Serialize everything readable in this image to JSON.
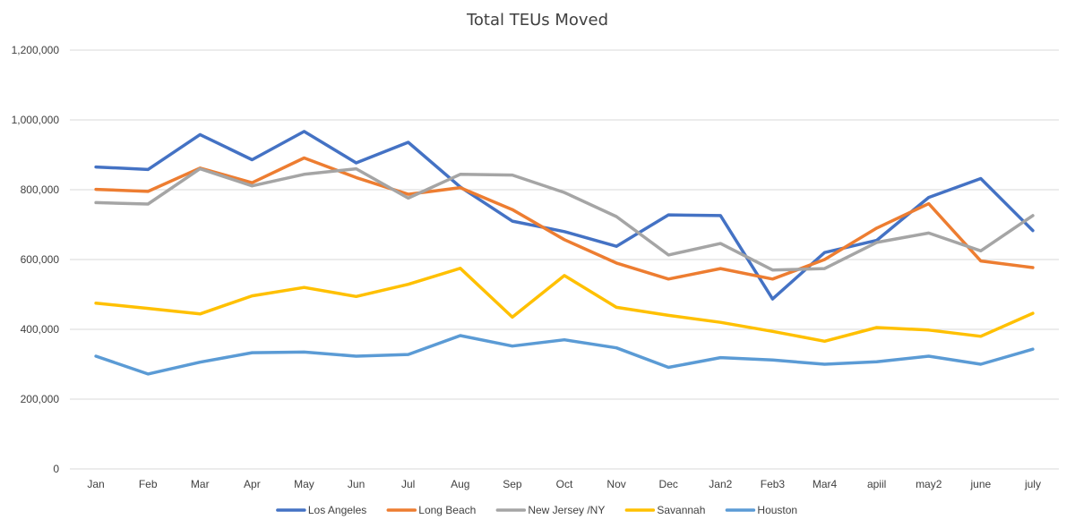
{
  "chart_data": {
    "type": "line",
    "title": "Total TEUs Moved",
    "xlabel": "",
    "ylabel": "",
    "ylim": [
      0,
      1200000
    ],
    "y_ticks": [
      0,
      200000,
      400000,
      600000,
      800000,
      1000000,
      1200000
    ],
    "y_tick_labels": [
      "0",
      "200,000",
      "400,000",
      "600,000",
      "800,000",
      "1,000,000",
      "1,200,000"
    ],
    "grid": true,
    "legend_position": "bottom",
    "categories": [
      "Jan",
      "Feb",
      "Mar",
      "Apr",
      "May",
      "Jun",
      "Jul",
      "Aug",
      "Sep",
      "Oct",
      "Nov",
      "Dec",
      "Jan2",
      "Feb3",
      "Mar4",
      "apiil",
      "may2",
      "june",
      "july"
    ],
    "series": [
      {
        "name": "Los Angeles",
        "color": "#4472C4",
        "values": [
          865000,
          858000,
          958000,
          886000,
          967000,
          877000,
          936000,
          808000,
          710000,
          680000,
          638000,
          728000,
          726000,
          487000,
          620000,
          655000,
          778000,
          832000,
          683000
        ]
      },
      {
        "name": "Long Beach",
        "color": "#ED7D31",
        "values": [
          801000,
          795000,
          862000,
          820000,
          891000,
          835000,
          787000,
          806000,
          743000,
          657000,
          590000,
          544000,
          574000,
          544000,
          600000,
          690000,
          760000,
          596000,
          577000
        ]
      },
      {
        "name": "New Jersey /NY",
        "color": "#A5A5A5",
        "values": [
          763000,
          759000,
          860000,
          811000,
          844000,
          860000,
          776000,
          844000,
          842000,
          792000,
          723000,
          613000,
          646000,
          570000,
          574000,
          649000,
          676000,
          625000,
          726000
        ]
      },
      {
        "name": "Savannah",
        "color": "#FFC000",
        "values": [
          475000,
          460000,
          444000,
          496000,
          520000,
          494000,
          529000,
          575000,
          435000,
          554000,
          463000,
          440000,
          420000,
          394000,
          366000,
          405000,
          398000,
          380000,
          446000
        ]
      },
      {
        "name": "Houston",
        "color": "#5B9BD5",
        "values": [
          323000,
          272000,
          306000,
          333000,
          335000,
          323000,
          328000,
          382000,
          352000,
          370000,
          347000,
          291000,
          319000,
          312000,
          300000,
          307000,
          323000,
          300000,
          343000
        ]
      }
    ]
  }
}
